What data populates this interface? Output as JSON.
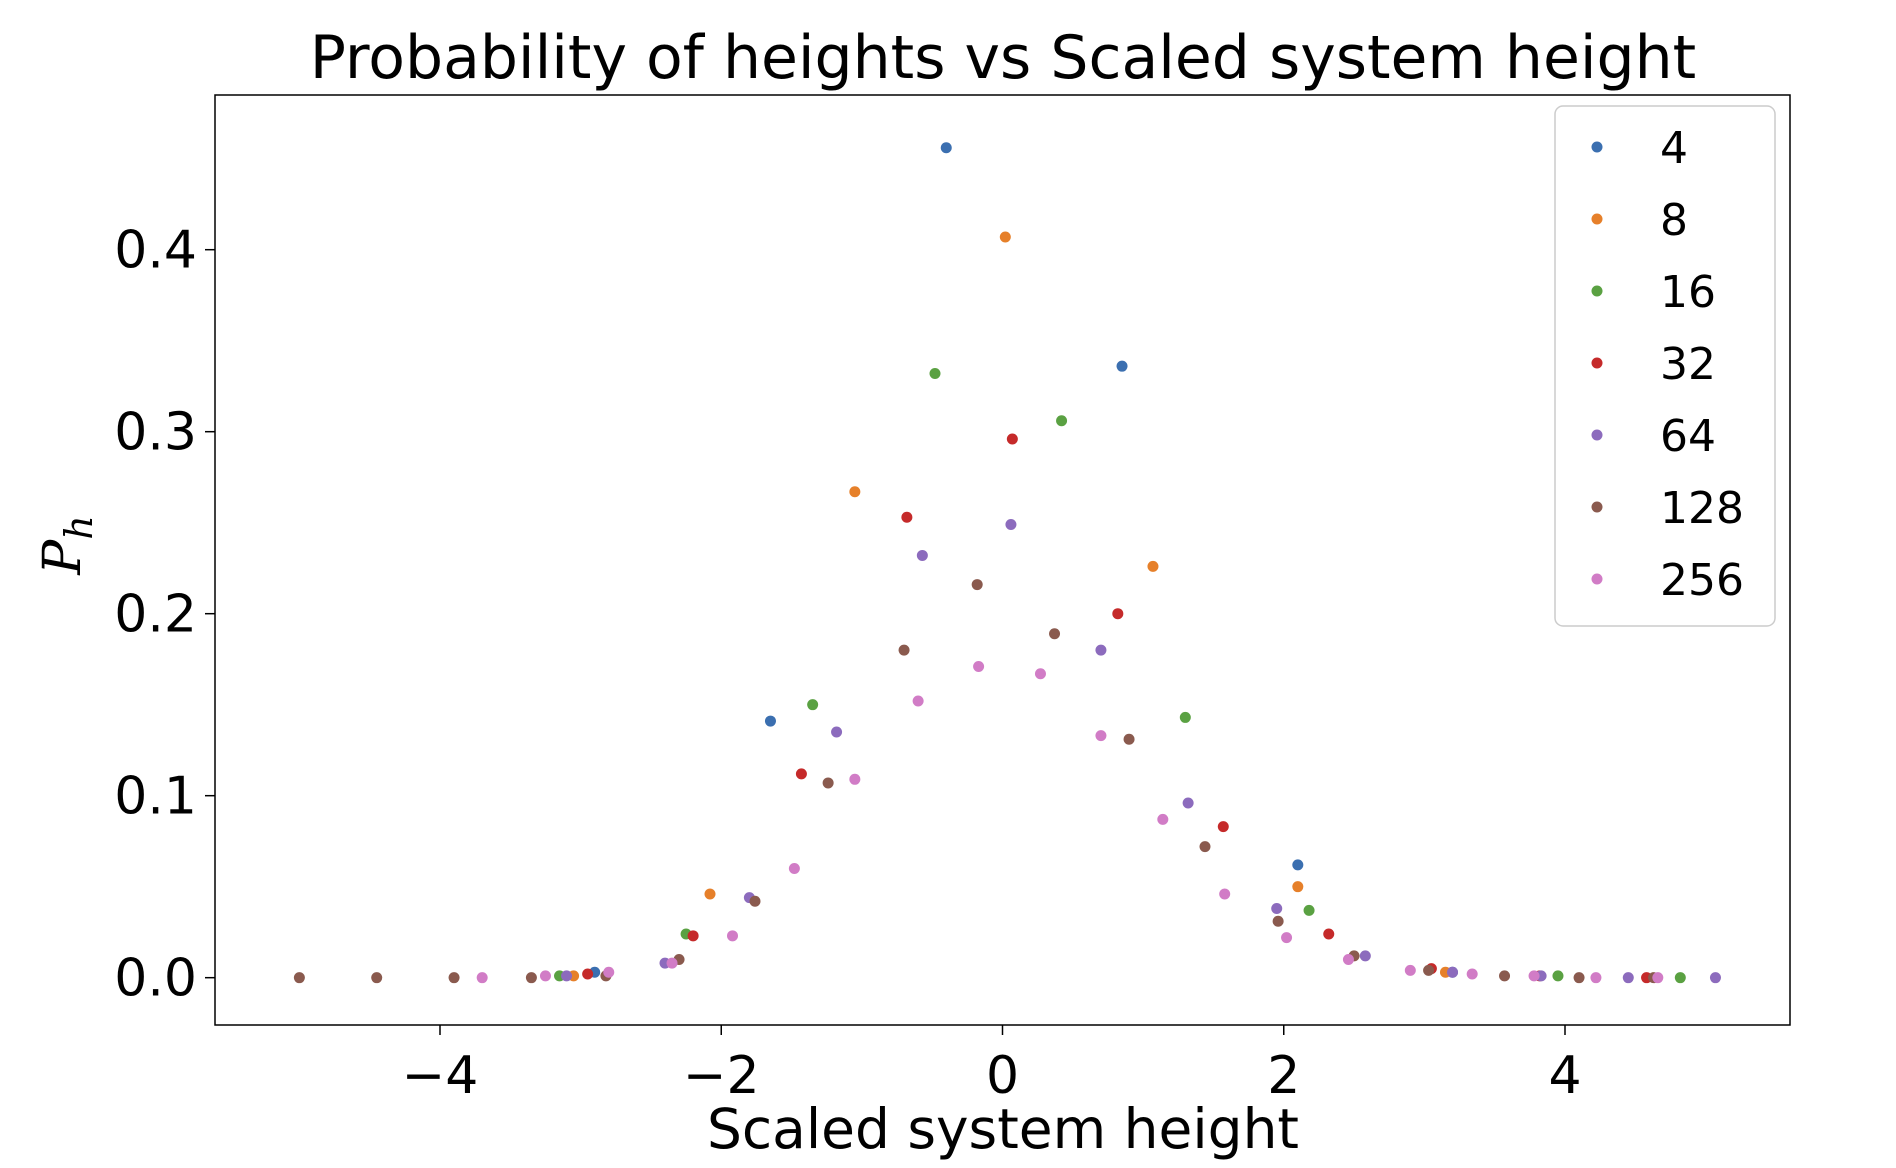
{
  "chart_data": {
    "type": "scatter",
    "title": "Probability of heights vs Scaled system height",
    "xlabel": "Scaled system height",
    "ylabel": {
      "base": "P",
      "sub": "h"
    },
    "xlim": [
      -5.6,
      5.6
    ],
    "ylim": [
      -0.026,
      0.485
    ],
    "xticks": [
      -4,
      -2,
      0,
      2,
      4
    ],
    "xtick_labels": [
      "−4",
      "−2",
      "0",
      "2",
      "4"
    ],
    "yticks": [
      0.0,
      0.1,
      0.2,
      0.3,
      0.4
    ],
    "ytick_labels": [
      "0.0",
      "0.1",
      "0.2",
      "0.3",
      "0.4"
    ],
    "grid": false,
    "legend_position": "top-right",
    "series": [
      {
        "name": "4",
        "color": "#3b6fb0",
        "points": [
          [
            -2.9,
            0.003
          ],
          [
            -1.65,
            0.141
          ],
          [
            -0.4,
            0.456
          ],
          [
            0.85,
            0.336
          ],
          [
            2.1,
            0.062
          ],
          [
            3.2,
            0.003
          ]
        ]
      },
      {
        "name": "8",
        "color": "#e6802a",
        "points": [
          [
            -3.05,
            0.001
          ],
          [
            -2.08,
            0.046
          ],
          [
            -1.05,
            0.267
          ],
          [
            0.02,
            0.407
          ],
          [
            1.07,
            0.226
          ],
          [
            2.1,
            0.05
          ],
          [
            3.15,
            0.003
          ]
        ]
      },
      {
        "name": "16",
        "color": "#5aa142",
        "points": [
          [
            -3.15,
            0.001
          ],
          [
            -2.25,
            0.024
          ],
          [
            -1.35,
            0.15
          ],
          [
            -0.48,
            0.332
          ],
          [
            0.42,
            0.306
          ],
          [
            1.3,
            0.143
          ],
          [
            2.18,
            0.037
          ],
          [
            3.95,
            0.001
          ],
          [
            4.82,
            0.0
          ]
        ]
      },
      {
        "name": "32",
        "color": "#c52a2a",
        "points": [
          [
            -2.95,
            0.002
          ],
          [
            -2.2,
            0.023
          ],
          [
            -1.43,
            0.112
          ],
          [
            -0.68,
            0.253
          ],
          [
            0.07,
            0.296
          ],
          [
            0.82,
            0.2
          ],
          [
            1.57,
            0.083
          ],
          [
            2.32,
            0.024
          ],
          [
            3.05,
            0.005
          ],
          [
            3.82,
            0.001
          ],
          [
            4.58,
            0.0
          ]
        ]
      },
      {
        "name": "64",
        "color": "#8c6bbd",
        "points": [
          [
            -3.1,
            0.001
          ],
          [
            -2.4,
            0.008
          ],
          [
            -1.8,
            0.044
          ],
          [
            -1.18,
            0.135
          ],
          [
            -0.57,
            0.232
          ],
          [
            0.06,
            0.249
          ],
          [
            0.7,
            0.18
          ],
          [
            1.32,
            0.096
          ],
          [
            1.95,
            0.038
          ],
          [
            2.58,
            0.012
          ],
          [
            3.2,
            0.003
          ],
          [
            3.83,
            0.001
          ],
          [
            4.45,
            0.0
          ],
          [
            5.07,
            0.0
          ]
        ]
      },
      {
        "name": "128",
        "color": "#8a5a4e",
        "points": [
          [
            -5.0,
            0.0
          ],
          [
            -4.45,
            0.0
          ],
          [
            -3.9,
            0.0
          ],
          [
            -3.35,
            0.0
          ],
          [
            -2.82,
            0.001
          ],
          [
            -2.3,
            0.01
          ],
          [
            -1.76,
            0.042
          ],
          [
            -1.24,
            0.107
          ],
          [
            -0.7,
            0.18
          ],
          [
            -0.18,
            0.216
          ],
          [
            0.37,
            0.189
          ],
          [
            0.9,
            0.131
          ],
          [
            1.44,
            0.072
          ],
          [
            1.96,
            0.031
          ],
          [
            2.5,
            0.012
          ],
          [
            3.03,
            0.004
          ],
          [
            3.57,
            0.001
          ],
          [
            4.1,
            0.0
          ],
          [
            4.63,
            0.0
          ]
        ]
      },
      {
        "name": "256",
        "color": "#d17cc6",
        "points": [
          [
            -3.7,
            0.0
          ],
          [
            -3.25,
            0.001
          ],
          [
            -2.8,
            0.003
          ],
          [
            -2.35,
            0.008
          ],
          [
            -1.92,
            0.023
          ],
          [
            -1.48,
            0.06
          ],
          [
            -1.05,
            0.109
          ],
          [
            -0.6,
            0.152
          ],
          [
            -0.17,
            0.171
          ],
          [
            0.27,
            0.167
          ],
          [
            0.7,
            0.133
          ],
          [
            1.14,
            0.087
          ],
          [
            1.58,
            0.046
          ],
          [
            2.02,
            0.022
          ],
          [
            2.46,
            0.01
          ],
          [
            2.9,
            0.004
          ],
          [
            3.34,
            0.002
          ],
          [
            3.78,
            0.001
          ],
          [
            4.22,
            0.0
          ],
          [
            4.66,
            0.0
          ]
        ]
      }
    ]
  }
}
